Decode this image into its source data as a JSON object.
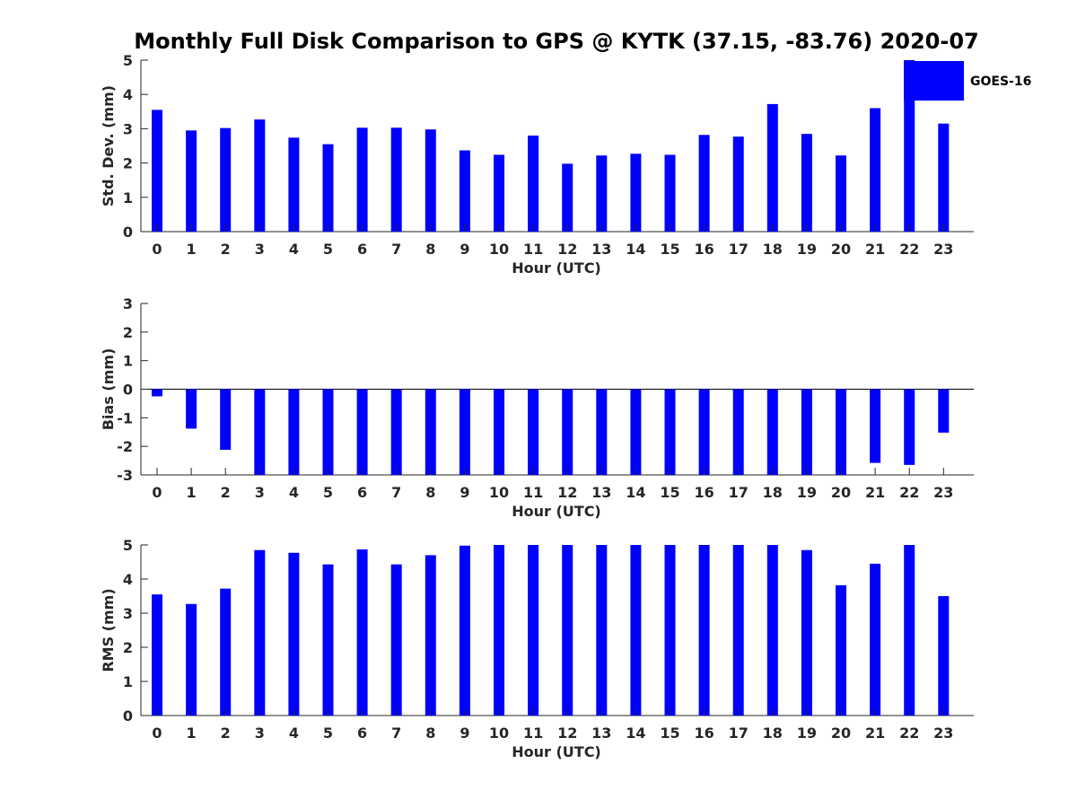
{
  "title": "Monthly Full Disk Comparison to GPS @ KYTK (37.15, -83.76) 2020-07",
  "legend": {
    "label": "GOES-16",
    "placement": "top-right",
    "color": "#0000ff"
  },
  "bar_color": "#0000ff",
  "chart_data": [
    {
      "type": "bar",
      "xlabel": "Hour (UTC)",
      "ylabel": "Std. Dev. (mm)",
      "categories": [
        "0",
        "1",
        "2",
        "3",
        "4",
        "5",
        "6",
        "7",
        "8",
        "9",
        "10",
        "11",
        "12",
        "13",
        "14",
        "15",
        "16",
        "17",
        "18",
        "19",
        "20",
        "21",
        "22",
        "23"
      ],
      "series": [
        {
          "name": "GOES-16",
          "values": [
            3.55,
            2.95,
            3.02,
            3.27,
            2.74,
            2.55,
            3.03,
            3.03,
            2.98,
            2.37,
            2.24,
            2.8,
            1.98,
            2.22,
            2.27,
            2.24,
            2.82,
            2.77,
            3.72,
            2.85,
            2.22,
            3.6,
            5.0,
            3.15
          ]
        }
      ],
      "ylim": [
        0,
        5
      ],
      "yticks": [
        "0",
        "1",
        "2",
        "3",
        "4",
        "5"
      ],
      "grid": false
    },
    {
      "type": "bar",
      "xlabel": "Hour (UTC)",
      "ylabel": "Bias (mm)",
      "categories": [
        "0",
        "1",
        "2",
        "3",
        "4",
        "5",
        "6",
        "7",
        "8",
        "9",
        "10",
        "11",
        "12",
        "13",
        "14",
        "15",
        "16",
        "17",
        "18",
        "19",
        "20",
        "21",
        "22",
        "23"
      ],
      "series": [
        {
          "name": "GOES-16",
          "values": [
            -0.25,
            -1.38,
            -2.12,
            -3.0,
            -3.0,
            -3.0,
            -3.0,
            -3.0,
            -3.0,
            -3.0,
            -3.0,
            -3.0,
            -3.0,
            -3.0,
            -3.0,
            -3.0,
            -3.0,
            -3.0,
            -3.0,
            -3.0,
            -3.0,
            -2.58,
            -2.65,
            -1.52
          ]
        }
      ],
      "ylim": [
        -3,
        3
      ],
      "yticks": [
        "-3",
        "-2",
        "-1",
        "0",
        "1",
        "2",
        "3"
      ],
      "grid": false
    },
    {
      "type": "bar",
      "xlabel": "Hour (UTC)",
      "ylabel": "RMS (mm)",
      "categories": [
        "0",
        "1",
        "2",
        "3",
        "4",
        "5",
        "6",
        "7",
        "8",
        "9",
        "10",
        "11",
        "12",
        "13",
        "14",
        "15",
        "16",
        "17",
        "18",
        "19",
        "20",
        "21",
        "22",
        "23"
      ],
      "series": [
        {
          "name": "GOES-16",
          "values": [
            3.55,
            3.27,
            3.72,
            4.85,
            4.77,
            4.43,
            4.87,
            4.43,
            4.7,
            4.98,
            5.0,
            5.0,
            5.0,
            5.0,
            5.0,
            5.0,
            5.0,
            5.0,
            5.0,
            4.85,
            3.82,
            4.45,
            5.0,
            3.5
          ]
        }
      ],
      "ylim": [
        0,
        5
      ],
      "yticks": [
        "0",
        "1",
        "2",
        "3",
        "4",
        "5"
      ],
      "grid": false
    }
  ]
}
